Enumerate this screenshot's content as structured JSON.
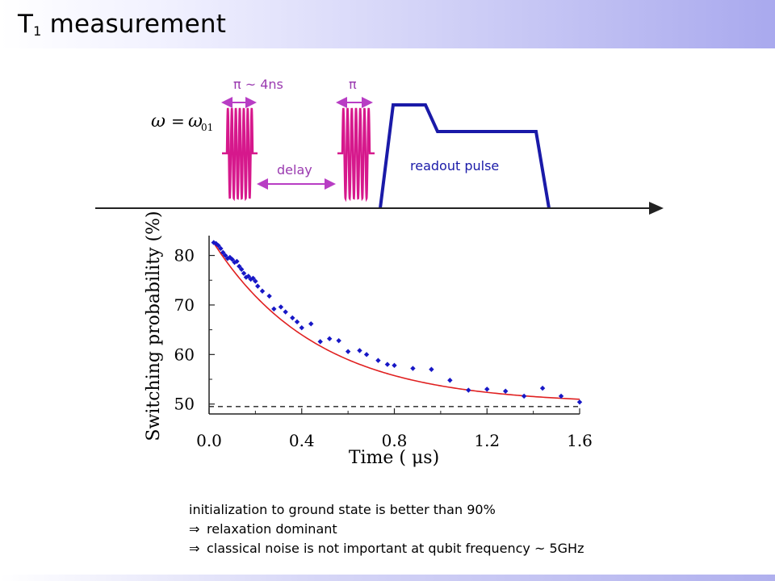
{
  "title": {
    "main": "T",
    "sub": "1",
    "rest": " measurement"
  },
  "pulse_diagram": {
    "omega_lhs": "ω",
    "omega_eq": "=",
    "omega_rhs": "ω",
    "omega_sub": "01",
    "pi_label_1": "π ~ 4ns",
    "pi_label_2": "π",
    "delay_label": "delay",
    "readout_label": "readout pulse",
    "colors": {
      "pulse": "#d6188c",
      "arrow": "#b83dc4",
      "readout": "#1a1aa8"
    }
  },
  "chart_data": {
    "type": "scatter",
    "xlabel": "Time ( μs)",
    "ylabel": "Switching probability (%)",
    "xlim": [
      0.0,
      1.6
    ],
    "ylim": [
      48,
      84
    ],
    "xticks": [
      "0.0",
      "0.4",
      "0.8",
      "1.2",
      "1.6"
    ],
    "yticks": [
      "50",
      "60",
      "70",
      "80"
    ],
    "baseline": 49.5,
    "fit": {
      "type": "exponential",
      "A": 50.0,
      "B": 34.0,
      "tau": 0.45
    },
    "points": [
      [
        0.02,
        82.6
      ],
      [
        0.03,
        82.4
      ],
      [
        0.04,
        82.0
      ],
      [
        0.05,
        81.4
      ],
      [
        0.06,
        80.6
      ],
      [
        0.07,
        80.0
      ],
      [
        0.08,
        79.4
      ],
      [
        0.09,
        79.6
      ],
      [
        0.1,
        79.2
      ],
      [
        0.11,
        78.6
      ],
      [
        0.12,
        78.8
      ],
      [
        0.13,
        77.8
      ],
      [
        0.14,
        77.2
      ],
      [
        0.15,
        76.4
      ],
      [
        0.16,
        75.6
      ],
      [
        0.17,
        75.8
      ],
      [
        0.18,
        75.2
      ],
      [
        0.19,
        75.4
      ],
      [
        0.2,
        74.8
      ],
      [
        0.21,
        73.8
      ],
      [
        0.23,
        72.8
      ],
      [
        0.26,
        71.8
      ],
      [
        0.28,
        69.2
      ],
      [
        0.31,
        69.6
      ],
      [
        0.33,
        68.6
      ],
      [
        0.36,
        67.4
      ],
      [
        0.38,
        66.6
      ],
      [
        0.4,
        65.4
      ],
      [
        0.44,
        66.2
      ],
      [
        0.48,
        62.6
      ],
      [
        0.52,
        63.2
      ],
      [
        0.56,
        62.8
      ],
      [
        0.6,
        60.6
      ],
      [
        0.65,
        60.8
      ],
      [
        0.68,
        60.0
      ],
      [
        0.73,
        58.8
      ],
      [
        0.77,
        58.0
      ],
      [
        0.8,
        57.8
      ],
      [
        0.88,
        57.2
      ],
      [
        0.96,
        57.0
      ],
      [
        1.04,
        54.8
      ],
      [
        1.12,
        52.8
      ],
      [
        1.2,
        53.0
      ],
      [
        1.28,
        52.6
      ],
      [
        1.36,
        51.6
      ],
      [
        1.44,
        53.2
      ],
      [
        1.52,
        51.6
      ],
      [
        1.6,
        50.4
      ]
    ],
    "marker_color": "#1717c6",
    "fit_color": "#e02020"
  },
  "notes": {
    "line1": "initialization to ground state is better than 90%",
    "line2": "relaxation dominant",
    "line3": "classical noise is not important at qubit frequency ~ 5GHz",
    "implies": "⇒"
  }
}
